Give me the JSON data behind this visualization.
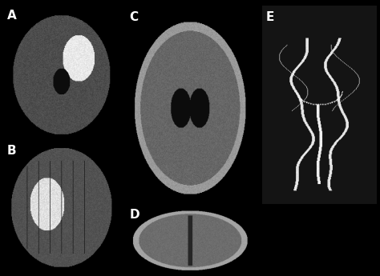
{
  "figure_bg": "#000000",
  "panel_bg": "#000000",
  "labels": [
    "A",
    "B",
    "C",
    "D",
    "E"
  ],
  "label_color": "#ffffff",
  "label_fontsize": 11,
  "label_fontweight": "bold",
  "figsize": [
    4.74,
    3.45
  ],
  "dpi": 100,
  "layout": {
    "A": [
      0.01,
      0.5,
      0.3,
      0.48
    ],
    "B": [
      0.01,
      0.01,
      0.3,
      0.48
    ],
    "C": [
      0.33,
      0.26,
      0.34,
      0.72
    ],
    "D": [
      0.33,
      0.01,
      0.34,
      0.24
    ],
    "E": [
      0.69,
      0.26,
      0.3,
      0.72
    ]
  }
}
